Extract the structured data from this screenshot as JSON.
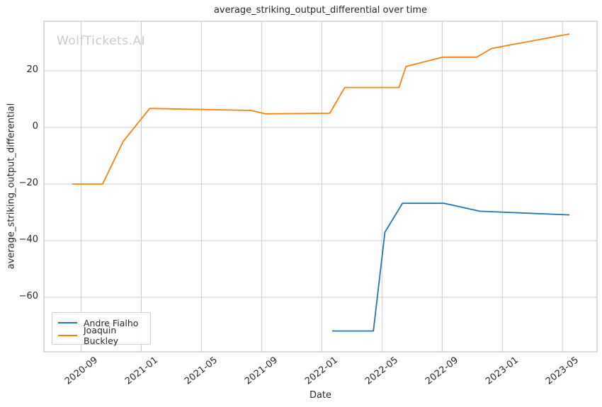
{
  "watermark": "WolfTickets.AI",
  "chart_data": {
    "type": "line",
    "title": "average_striking_output_differential over time",
    "xlabel": "Date",
    "ylabel": "average_striking_output_differential",
    "grid": true,
    "legend_position": "lower left",
    "x_range": [
      "2020-06-17",
      "2023-07-10"
    ],
    "y_range": [
      -79.25,
      37.5
    ],
    "x_ticks": [
      {
        "label": "2020-09",
        "date": "2020-09-01"
      },
      {
        "label": "2021-01",
        "date": "2021-01-01"
      },
      {
        "label": "2021-05",
        "date": "2021-05-01"
      },
      {
        "label": "2021-09",
        "date": "2021-09-01"
      },
      {
        "label": "2022-01",
        "date": "2022-01-01"
      },
      {
        "label": "2022-05",
        "date": "2022-05-01"
      },
      {
        "label": "2022-09",
        "date": "2022-09-01"
      },
      {
        "label": "2023-01",
        "date": "2023-01-01"
      },
      {
        "label": "2023-05",
        "date": "2023-05-01"
      }
    ],
    "y_ticks": [
      {
        "label": "20",
        "value": 20
      },
      {
        "label": "0",
        "value": 0
      },
      {
        "label": "−20",
        "value": -20
      },
      {
        "label": "−40",
        "value": -40
      },
      {
        "label": "−60",
        "value": -60
      }
    ],
    "series": [
      {
        "name": "Andre Fialho",
        "color": "#1f77b4",
        "points": [
          [
            "2022-01-22",
            -71.9
          ],
          [
            "2022-04-14",
            -71.9
          ],
          [
            "2022-05-07",
            -37.0
          ],
          [
            "2022-06-12",
            -26.8
          ],
          [
            "2022-09-05",
            -26.8
          ],
          [
            "2022-11-16",
            -29.6
          ],
          [
            "2023-05-15",
            -30.9
          ]
        ]
      },
      {
        "name": "Joaquin Buckley",
        "color": "#ff7f0e",
        "points": [
          [
            "2020-08-13",
            -20.0
          ],
          [
            "2020-10-14",
            -20.0
          ],
          [
            "2020-11-25",
            -5.0
          ],
          [
            "2021-01-18",
            6.7
          ],
          [
            "2021-08-10",
            6.0
          ],
          [
            "2021-09-08",
            4.8
          ],
          [
            "2022-01-17",
            5.0
          ],
          [
            "2022-02-17",
            14.1
          ],
          [
            "2022-06-05",
            14.1
          ],
          [
            "2022-06-19",
            21.5
          ],
          [
            "2022-09-02",
            24.8
          ],
          [
            "2022-11-10",
            24.8
          ],
          [
            "2022-12-10",
            27.9
          ],
          [
            "2023-05-15",
            33.0
          ]
        ]
      }
    ],
    "colors": {
      "grid": "#cccccc",
      "spine": "#c6c6c6",
      "text": "#262626",
      "watermark": "#c9c9c9"
    }
  }
}
